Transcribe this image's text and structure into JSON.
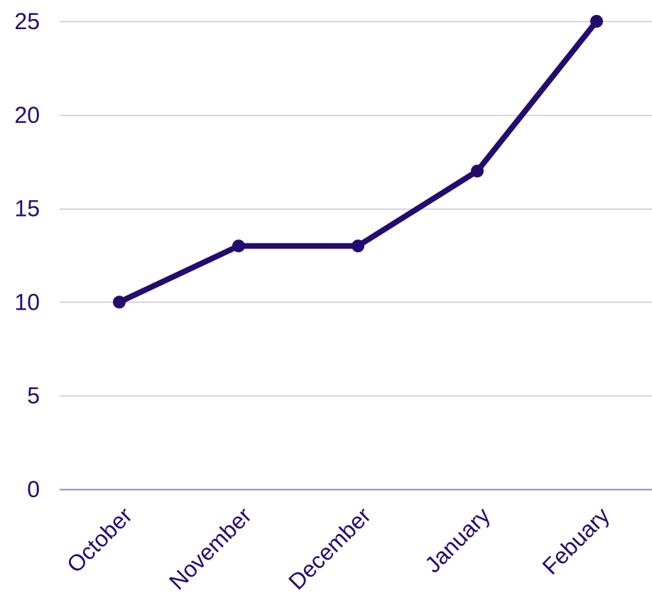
{
  "chart_data": {
    "type": "line",
    "title": "",
    "xlabel": "",
    "ylabel": "",
    "categories": [
      "October",
      "November",
      "December",
      "January",
      "Febuary"
    ],
    "series": [
      {
        "values": [
          10,
          13,
          13,
          17,
          25
        ]
      }
    ],
    "ylim": [
      0,
      25
    ],
    "yticks": [
      0,
      5,
      10,
      15,
      20,
      25
    ],
    "ytick_labels": [
      "0",
      "5",
      "10",
      "15",
      "20",
      "25"
    ],
    "grid": "horizontal",
    "legend": "none",
    "colors": {
      "line": "#240b6e",
      "text": "#240b6e",
      "grid": "#c8c6dc",
      "baseline": "#8f8bbf"
    }
  }
}
